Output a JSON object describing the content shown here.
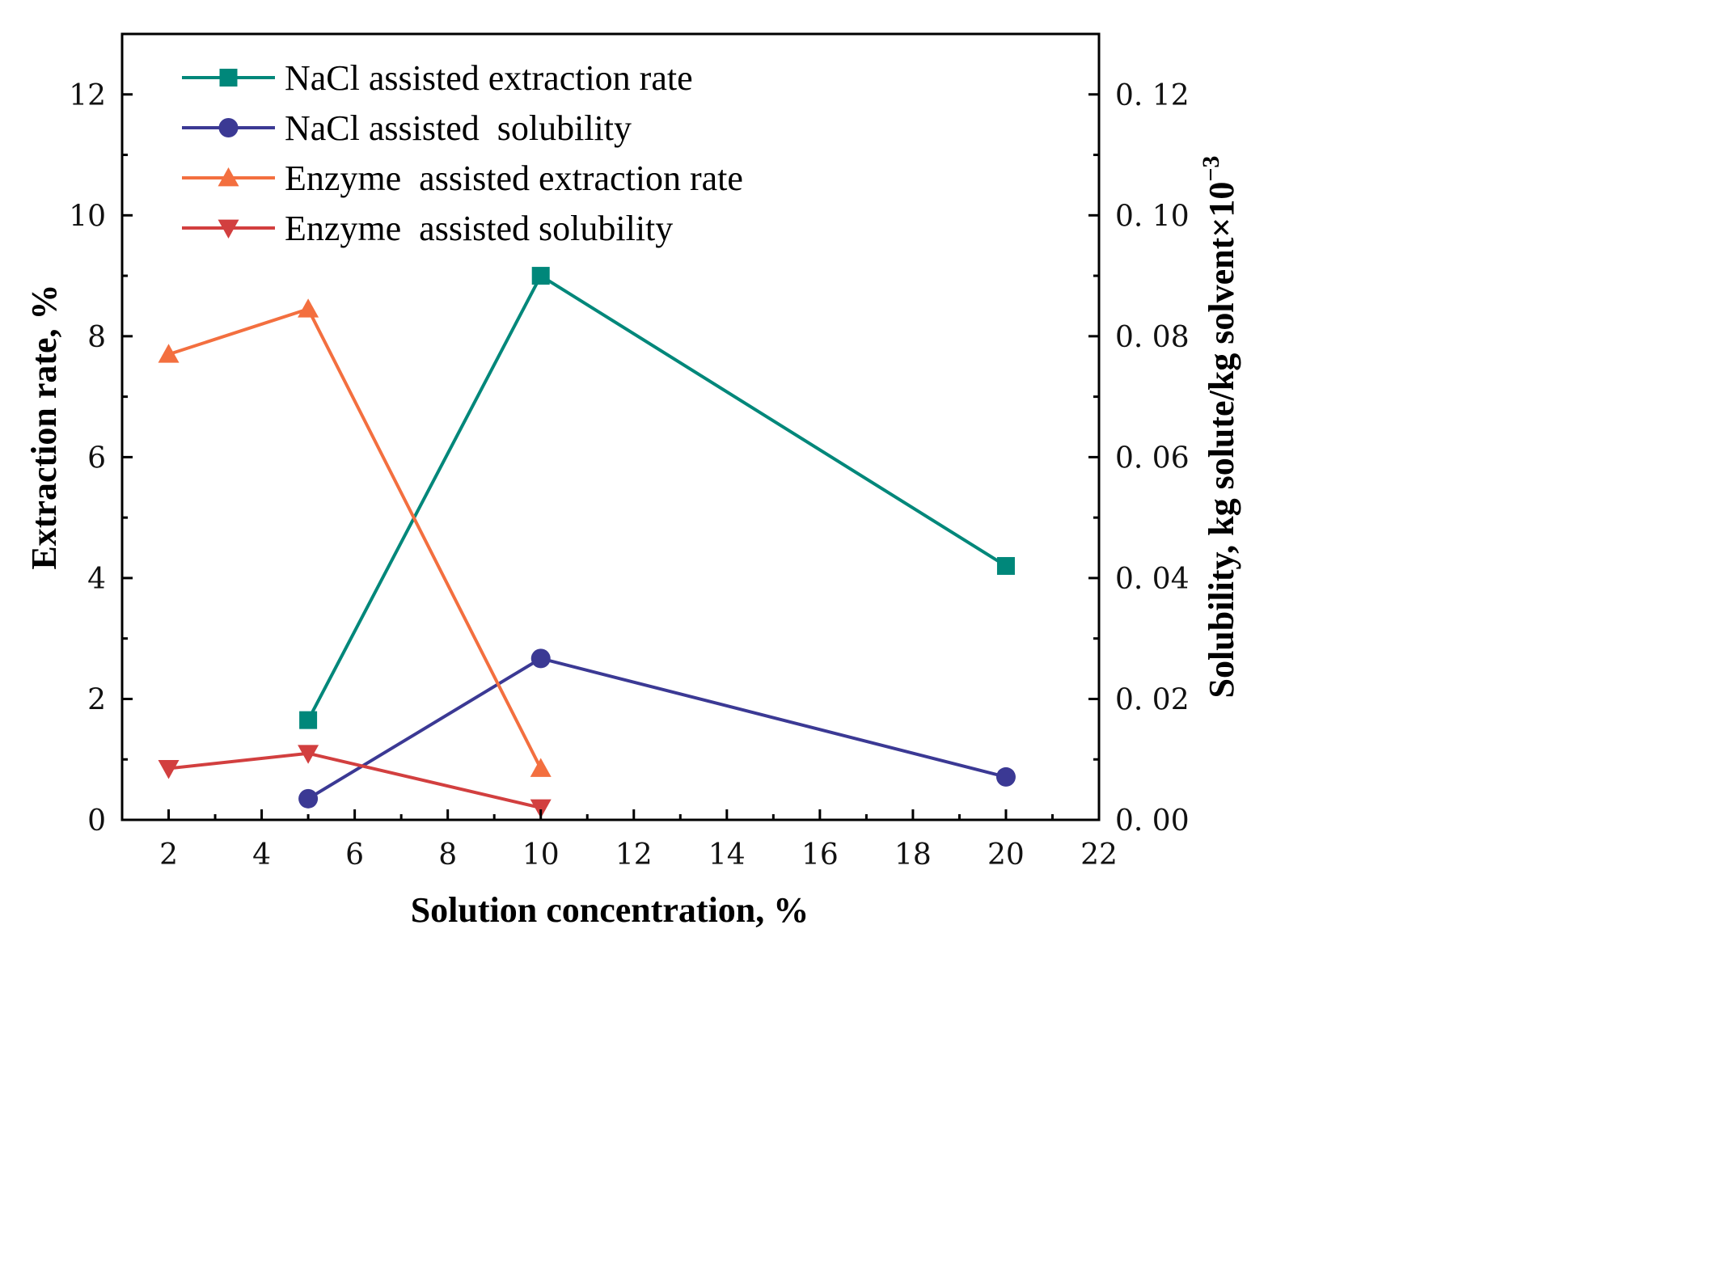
{
  "chart_data": {
    "type": "line",
    "title": "",
    "xlabel": "Solution concentration, %",
    "ylabel_left": "Extraction rate, %",
    "ylabel_right": "Solubility, kg solute/kg solvent×10",
    "ylabel_right_exponent": "−3",
    "xlim": [
      1,
      22
    ],
    "ylim_left": [
      0,
      13
    ],
    "ylim_right": [
      0,
      0.13
    ],
    "x_ticks": [
      2,
      4,
      6,
      8,
      10,
      12,
      14,
      16,
      18,
      20,
      22
    ],
    "x_tick_labels": [
      "2",
      "4",
      "6",
      "8",
      "10",
      "12",
      "14",
      "16",
      "18",
      "20",
      "22"
    ],
    "y_left_ticks": [
      0,
      2,
      4,
      6,
      8,
      10,
      12
    ],
    "y_left_tick_labels": [
      "0",
      "2",
      "4",
      "6",
      "8",
      "10",
      "12"
    ],
    "y_right_ticks": [
      0,
      0.02,
      0.04,
      0.06,
      0.08,
      0.1,
      0.12
    ],
    "y_right_tick_labels": [
      "0. 00",
      "0. 02",
      "0. 04",
      "0. 06",
      "0. 08",
      "0. 10",
      "0. 12"
    ],
    "grid": false,
    "legend_position": "top-left",
    "series": [
      {
        "name": "NaCl assisted extraction rate",
        "axis": "left",
        "marker": "square",
        "color": "#00877a",
        "x": [
          5,
          10,
          20
        ],
        "y": [
          1.65,
          9.0,
          4.2
        ]
      },
      {
        "name": "NaCl assisted  solubility",
        "axis": "right",
        "marker": "circle",
        "color": "#3b3994",
        "x": [
          5,
          10,
          20
        ],
        "y": [
          0.0035,
          0.0267,
          0.0071
        ]
      },
      {
        "name": "Enzyme  assisted extraction rate",
        "axis": "left",
        "marker": "triangle-up",
        "color": "#f36f3f",
        "x": [
          2,
          5,
          10
        ],
        "y": [
          7.7,
          8.45,
          0.85
        ]
      },
      {
        "name": "Enzyme  assisted solubility",
        "axis": "right",
        "marker": "triangle-down",
        "color": "#d23f3f",
        "x": [
          2,
          5,
          10
        ],
        "y": [
          0.0085,
          0.011,
          0.002
        ]
      }
    ]
  }
}
